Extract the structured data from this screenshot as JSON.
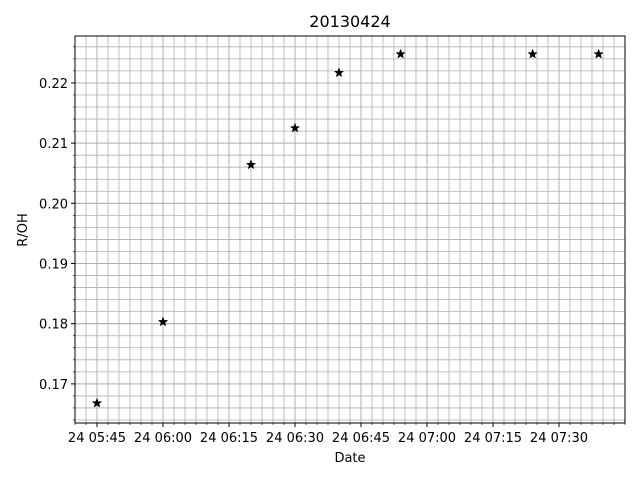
{
  "chart_data": {
    "type": "scatter",
    "title": "20130424",
    "xlabel": "Date",
    "ylabel": "R/OH",
    "x_axis_type": "time",
    "xlim": [
      "2013-04-24 05:40",
      "2013-04-24 07:45"
    ],
    "ylim": [
      0.1635,
      0.2278
    ],
    "x_ticks": [
      "2013-04-24 05:45",
      "2013-04-24 06:00",
      "2013-04-24 06:15",
      "2013-04-24 06:30",
      "2013-04-24 06:45",
      "2013-04-24 07:00",
      "2013-04-24 07:15",
      "2013-04-24 07:30"
    ],
    "x_tick_labels": [
      "24 05:45",
      "24 06:00",
      "24 06:15",
      "24 06:30",
      "24 06:45",
      "24 07:00",
      "24 07:15",
      "24 07:30"
    ],
    "y_ticks": [
      0.17,
      0.18,
      0.19,
      0.2,
      0.21,
      0.22
    ],
    "y_tick_labels": [
      "0.17",
      "0.18",
      "0.19",
      "0.20",
      "0.21",
      "0.22"
    ],
    "grid": true,
    "minor_grid": true,
    "marker": "star",
    "marker_color": "#000000",
    "grid_color": "#b0b0b0",
    "series": [
      {
        "x": [
          "2013-04-24 05:45",
          "2013-04-24 06:00",
          "2013-04-24 06:20",
          "2013-04-24 06:30",
          "2013-04-24 06:40",
          "2013-04-24 06:54",
          "2013-04-24 07:24",
          "2013-04-24 07:39"
        ],
        "y": [
          0.1668,
          0.1803,
          0.2064,
          0.2125,
          0.2217,
          0.2248,
          0.2248,
          0.2248
        ]
      }
    ]
  }
}
